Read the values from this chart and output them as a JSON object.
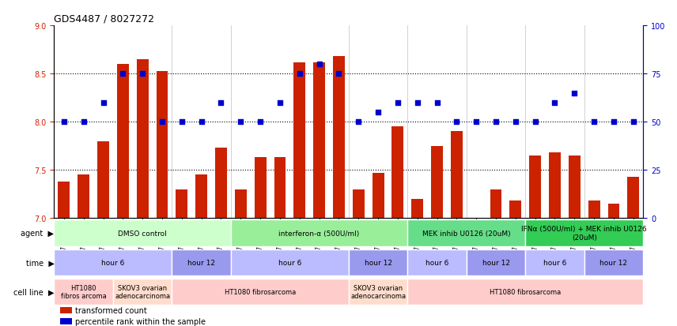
{
  "title": "GDS4487 / 8027272",
  "samples": [
    "GSM768611",
    "GSM768612",
    "GSM768613",
    "GSM768635",
    "GSM768636",
    "GSM768637",
    "GSM768614",
    "GSM768615",
    "GSM768616",
    "GSM768617",
    "GSM768618",
    "GSM768619",
    "GSM768638",
    "GSM768639",
    "GSM768640",
    "GSM768620",
    "GSM768621",
    "GSM768622",
    "GSM768623",
    "GSM768624",
    "GSM768625",
    "GSM768626",
    "GSM768627",
    "GSM768628",
    "GSM768629",
    "GSM768630",
    "GSM768631",
    "GSM768632",
    "GSM768633",
    "GSM768634"
  ],
  "bar_values": [
    7.38,
    7.45,
    7.8,
    8.6,
    8.65,
    8.53,
    7.3,
    7.45,
    7.73,
    7.3,
    7.63,
    7.63,
    8.62,
    8.62,
    8.68,
    7.3,
    7.47,
    7.95,
    7.2,
    7.75,
    7.9,
    7.0,
    7.3,
    7.18,
    7.65,
    7.68,
    7.65,
    7.18,
    7.15,
    7.43
  ],
  "dot_values": [
    50,
    50,
    60,
    75,
    75,
    50,
    50,
    50,
    60,
    50,
    50,
    60,
    75,
    80,
    75,
    50,
    55,
    60,
    60,
    60,
    50,
    50,
    50,
    50,
    50,
    60,
    65,
    50,
    50,
    50
  ],
  "bar_color": "#cc2200",
  "dot_color": "#0000cc",
  "ylim_left": [
    7,
    9
  ],
  "ylim_right": [
    0,
    100
  ],
  "yticks_left": [
    7,
    7.5,
    8,
    8.5,
    9
  ],
  "yticks_right": [
    0,
    25,
    50,
    75,
    100
  ],
  "hlines": [
    7.5,
    8.0,
    8.5
  ],
  "agent_labels": [
    {
      "text": "DMSO control",
      "start": 0,
      "end": 9,
      "color": "#ccffcc"
    },
    {
      "text": "interferon-α (500U/ml)",
      "start": 9,
      "end": 18,
      "color": "#99ee99"
    },
    {
      "text": "MEK inhib U0126 (20uM)",
      "start": 18,
      "end": 24,
      "color": "#66dd88"
    },
    {
      "text": "IFNα (500U/ml) + MEK inhib U0126\n(20uM)",
      "start": 24,
      "end": 30,
      "color": "#33cc55"
    }
  ],
  "time_labels": [
    {
      "text": "hour 6",
      "start": 0,
      "end": 6,
      "color": "#bbbbff"
    },
    {
      "text": "hour 12",
      "start": 6,
      "end": 9,
      "color": "#9999ee"
    },
    {
      "text": "hour 6",
      "start": 9,
      "end": 15,
      "color": "#bbbbff"
    },
    {
      "text": "hour 12",
      "start": 15,
      "end": 18,
      "color": "#9999ee"
    },
    {
      "text": "hour 6",
      "start": 18,
      "end": 21,
      "color": "#bbbbff"
    },
    {
      "text": "hour 12",
      "start": 21,
      "end": 24,
      "color": "#9999ee"
    },
    {
      "text": "hour 6",
      "start": 24,
      "end": 27,
      "color": "#bbbbff"
    },
    {
      "text": "hour 12",
      "start": 27,
      "end": 30,
      "color": "#9999ee"
    }
  ],
  "cell_labels": [
    {
      "text": "HT1080\nfibros arcoma",
      "start": 0,
      "end": 3,
      "color": "#ffcccc"
    },
    {
      "text": "SKOV3 ovarian\nadenocarcinoma",
      "start": 3,
      "end": 6,
      "color": "#ffddcc"
    },
    {
      "text": "HT1080 fibrosarcoma",
      "start": 6,
      "end": 15,
      "color": "#ffcccc"
    },
    {
      "text": "SKOV3 ovarian\nadenocarcinoma",
      "start": 15,
      "end": 18,
      "color": "#ffddcc"
    },
    {
      "text": "HT1080 fibrosarcoma",
      "start": 18,
      "end": 30,
      "color": "#ffcccc"
    }
  ],
  "row_labels": [
    "agent",
    "time",
    "cell line"
  ],
  "legend_items": [
    {
      "label": "transformed count",
      "color": "#cc2200"
    },
    {
      "label": "percentile rank within the sample",
      "color": "#0000cc"
    }
  ]
}
